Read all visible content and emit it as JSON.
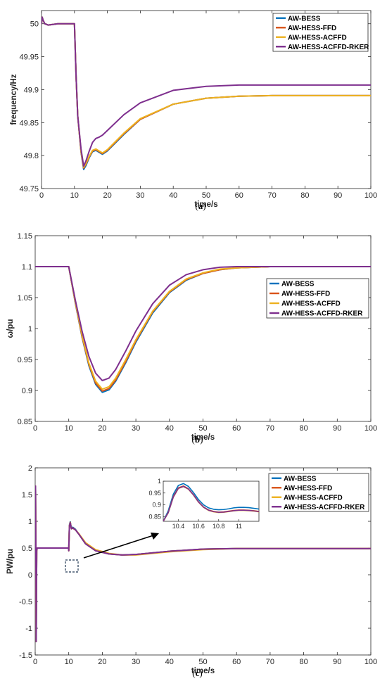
{
  "colors": {
    "AW-BESS": "#0072BD",
    "AW-HESS-FFD": "#D95319",
    "AW-HESS-ACFFD": "#EDB120",
    "AW-HESS-ACFFD-RKER": "#7E2F8E"
  },
  "chart_data": [
    {
      "id": "a",
      "type": "line",
      "caption": "a",
      "xlabel": "time/s",
      "ylabel": "frequency/Hz",
      "xlim": [
        0,
        100
      ],
      "ylim": [
        49.75,
        50.02
      ],
      "xticks": [
        0,
        10,
        20,
        30,
        40,
        50,
        60,
        70,
        80,
        90,
        100
      ],
      "yticks": [
        49.75,
        49.8,
        49.85,
        49.9,
        49.95,
        50
      ],
      "ytick_labels": [
        "49.75",
        "49.8",
        "49.85",
        "49.9",
        "49.95",
        "50"
      ],
      "legend": {
        "position": "top-right",
        "entries": [
          "AW-BESS",
          "AW-HESS-FFD",
          "AW-HESS-ACFFD",
          "AW-HESS-ACFFD-RKER"
        ]
      },
      "series": [
        {
          "name": "AW-BESS",
          "x": [
            0,
            0.2,
            0.5,
            1,
            2,
            5,
            10,
            10.5,
            11,
            12,
            12.8,
            13.5,
            14.5,
            15.5,
            16.5,
            17.5,
            18.5,
            20,
            25,
            30,
            40,
            50,
            60,
            70,
            80,
            100
          ],
          "y": [
            50.0,
            50.01,
            50.005,
            50.0,
            49.998,
            50.0,
            50.0,
            49.92,
            49.86,
            49.805,
            49.779,
            49.785,
            49.797,
            49.806,
            49.808,
            49.805,
            49.802,
            49.807,
            49.832,
            49.855,
            49.878,
            49.887,
            49.89,
            49.891,
            49.891,
            49.891
          ]
        },
        {
          "name": "AW-HESS-FFD",
          "x": [
            0,
            0.2,
            0.5,
            1,
            2,
            5,
            10,
            10.5,
            11,
            12,
            12.8,
            13.5,
            14.5,
            15.5,
            16.5,
            17.5,
            18.5,
            20,
            25,
            30,
            40,
            50,
            60,
            70,
            80,
            100
          ],
          "y": [
            50.0,
            50.01,
            50.005,
            50.0,
            49.998,
            50.0,
            50.0,
            49.92,
            49.86,
            49.806,
            49.781,
            49.787,
            49.798,
            49.807,
            49.809,
            49.806,
            49.803,
            49.808,
            49.833,
            49.855,
            49.878,
            49.887,
            49.89,
            49.891,
            49.891,
            49.891
          ]
        },
        {
          "name": "AW-HESS-ACFFD",
          "x": [
            0,
            0.2,
            0.5,
            1,
            2,
            5,
            10,
            10.5,
            11,
            12,
            12.8,
            13.5,
            14.5,
            15.5,
            16.5,
            17.5,
            18.5,
            20,
            25,
            30,
            40,
            50,
            60,
            70,
            80,
            100
          ],
          "y": [
            50.0,
            50.01,
            50.005,
            50.0,
            49.998,
            50.0,
            50.0,
            49.92,
            49.86,
            49.807,
            49.782,
            49.788,
            49.799,
            49.808,
            49.81,
            49.807,
            49.804,
            49.809,
            49.834,
            49.856,
            49.878,
            49.887,
            49.89,
            49.891,
            49.891,
            49.891
          ]
        },
        {
          "name": "AW-HESS-ACFFD-RKER",
          "x": [
            0,
            0.2,
            0.5,
            1,
            2,
            5,
            10,
            10.5,
            11,
            12,
            12.8,
            13.5,
            14.5,
            15.5,
            16.5,
            17.5,
            18.5,
            20,
            25,
            30,
            40,
            50,
            60,
            70,
            80,
            100
          ],
          "y": [
            50.0,
            50.01,
            50.005,
            50.0,
            49.998,
            50.0,
            50.0,
            49.92,
            49.86,
            49.81,
            49.784,
            49.792,
            49.807,
            49.82,
            49.826,
            49.828,
            49.831,
            49.838,
            49.862,
            49.88,
            49.899,
            49.905,
            49.907,
            49.907,
            49.907,
            49.907
          ]
        }
      ]
    },
    {
      "id": "b",
      "type": "line",
      "caption": "b",
      "xlabel": "time/s",
      "ylabel": "ω/pu",
      "xlim": [
        0,
        100
      ],
      "ylim": [
        0.85,
        1.15
      ],
      "xticks": [
        0,
        10,
        20,
        30,
        40,
        50,
        60,
        70,
        80,
        90,
        100
      ],
      "yticks": [
        0.85,
        0.9,
        0.95,
        1,
        1.05,
        1.1,
        1.15
      ],
      "ytick_labels": [
        "0.85",
        "0.9",
        "0.95",
        "1",
        "1.05",
        "1.1",
        "1.15"
      ],
      "legend": {
        "position": "right",
        "entries": [
          "AW-BESS",
          "AW-HESS-FFD",
          "AW-HESS-ACFFD",
          "AW-HESS-ACFFD-RKER"
        ]
      },
      "series": [
        {
          "name": "AW-BESS",
          "x": [
            0,
            10,
            12,
            14,
            16,
            18,
            20,
            22,
            24,
            27,
            30,
            35,
            40,
            45,
            50,
            55,
            60,
            70,
            80,
            100
          ],
          "y": [
            1.1,
            1.1,
            1.04,
            0.985,
            0.94,
            0.91,
            0.897,
            0.901,
            0.915,
            0.945,
            0.978,
            1.025,
            1.058,
            1.078,
            1.089,
            1.095,
            1.098,
            1.1,
            1.1,
            1.1
          ]
        },
        {
          "name": "AW-HESS-FFD",
          "x": [
            0,
            10,
            12,
            14,
            16,
            18,
            20,
            22,
            24,
            27,
            30,
            35,
            40,
            45,
            50,
            55,
            60,
            70,
            80,
            100
          ],
          "y": [
            1.1,
            1.1,
            1.041,
            0.986,
            0.942,
            0.912,
            0.899,
            0.903,
            0.917,
            0.947,
            0.98,
            1.027,
            1.059,
            1.079,
            1.089,
            1.095,
            1.098,
            1.1,
            1.1,
            1.1
          ]
        },
        {
          "name": "AW-HESS-ACFFD",
          "x": [
            0,
            10,
            12,
            14,
            16,
            18,
            20,
            22,
            24,
            27,
            30,
            35,
            40,
            45,
            50,
            55,
            60,
            70,
            80,
            100
          ],
          "y": [
            1.1,
            1.1,
            1.042,
            0.988,
            0.944,
            0.915,
            0.902,
            0.906,
            0.92,
            0.95,
            0.982,
            1.028,
            1.06,
            1.08,
            1.09,
            1.096,
            1.098,
            1.1,
            1.1,
            1.1
          ]
        },
        {
          "name": "AW-HESS-ACFFD-RKER",
          "x": [
            0,
            10,
            12,
            14,
            16,
            18,
            20,
            22,
            24,
            27,
            30,
            35,
            40,
            45,
            50,
            55,
            60,
            70,
            80,
            100
          ],
          "y": [
            1.1,
            1.1,
            1.045,
            0.995,
            0.955,
            0.928,
            0.916,
            0.92,
            0.934,
            0.964,
            0.996,
            1.04,
            1.07,
            1.087,
            1.095,
            1.099,
            1.1,
            1.1,
            1.1,
            1.1
          ]
        }
      ]
    },
    {
      "id": "c",
      "type": "line",
      "caption": "c",
      "xlabel": "time/s",
      "ylabel": "PW/pu",
      "xlim": [
        0,
        100
      ],
      "ylim": [
        -1.5,
        2
      ],
      "xticks": [
        0,
        10,
        20,
        30,
        40,
        50,
        60,
        70,
        80,
        90,
        100
      ],
      "yticks": [
        -1.5,
        -1,
        -0.5,
        0,
        0.5,
        1,
        1.5,
        2
      ],
      "ytick_labels": [
        "-1.5",
        "-1",
        "-0.5",
        "0",
        "0.5",
        "1",
        "1.5",
        "2"
      ],
      "legend": {
        "position": "top-right",
        "entries": [
          "AW-BESS",
          "AW-HESS-FFD",
          "AW-HESS-ACFFD",
          "AW-HESS-ACFFD-RKER"
        ]
      },
      "series": [
        {
          "name": "AW-BESS",
          "x": [
            0,
            0.1,
            0.2,
            0.3,
            0.45,
            0.6,
            1,
            5,
            9.95,
            10,
            10.2,
            10.45,
            10.8,
            11.2,
            12,
            13,
            15,
            18,
            22,
            26,
            30,
            40,
            50,
            60,
            80,
            100
          ],
          "y": [
            0.5,
            1.66,
            0.6,
            -1.25,
            0.45,
            0.5,
            0.5,
            0.5,
            0.5,
            0.45,
            0.93,
            0.99,
            0.87,
            0.89,
            0.85,
            0.76,
            0.58,
            0.45,
            0.39,
            0.37,
            0.38,
            0.44,
            0.48,
            0.49,
            0.49,
            0.49
          ]
        },
        {
          "name": "AW-HESS-FFD",
          "x": [
            0,
            0.1,
            0.2,
            0.3,
            0.45,
            0.6,
            1,
            5,
            9.95,
            10,
            10.2,
            10.45,
            10.8,
            11.2,
            12,
            13,
            15,
            18,
            22,
            26,
            30,
            40,
            50,
            60,
            80,
            100
          ],
          "y": [
            0.5,
            1.66,
            0.6,
            -1.25,
            0.45,
            0.5,
            0.5,
            0.5,
            0.5,
            0.45,
            0.92,
            0.98,
            0.86,
            0.88,
            0.84,
            0.76,
            0.58,
            0.45,
            0.39,
            0.37,
            0.38,
            0.44,
            0.48,
            0.49,
            0.49,
            0.49
          ]
        },
        {
          "name": "AW-HESS-ACFFD",
          "x": [
            0,
            0.1,
            0.2,
            0.3,
            0.45,
            0.6,
            1,
            5,
            9.95,
            10,
            10.2,
            10.45,
            10.8,
            11.2,
            12,
            13,
            15,
            18,
            22,
            26,
            30,
            40,
            50,
            60,
            80,
            100
          ],
          "y": [
            0.5,
            1.66,
            0.6,
            -1.25,
            0.45,
            0.5,
            0.5,
            0.5,
            0.5,
            0.45,
            0.91,
            0.97,
            0.86,
            0.87,
            0.84,
            0.77,
            0.6,
            0.47,
            0.4,
            0.37,
            0.37,
            0.43,
            0.47,
            0.49,
            0.49,
            0.49
          ]
        },
        {
          "name": "AW-HESS-ACFFD-RKER",
          "x": [
            0,
            0.1,
            0.2,
            0.3,
            0.45,
            0.6,
            1,
            5,
            9.95,
            10,
            10.2,
            10.45,
            10.8,
            11.2,
            12,
            13,
            15,
            18,
            22,
            26,
            30,
            40,
            50,
            60,
            80,
            100
          ],
          "y": [
            0.5,
            1.66,
            0.6,
            -1.25,
            0.45,
            0.5,
            0.5,
            0.5,
            0.5,
            0.45,
            0.91,
            0.97,
            0.86,
            0.875,
            0.84,
            0.76,
            0.58,
            0.45,
            0.39,
            0.37,
            0.38,
            0.44,
            0.48,
            0.49,
            0.49,
            0.49
          ]
        }
      ],
      "inset": {
        "xlim": [
          10.25,
          11.2
        ],
        "ylim": [
          0.83,
          1.0
        ],
        "xticks": [
          10.4,
          10.6,
          10.8,
          11
        ],
        "xtick_labels": [
          "10.4",
          "10.6",
          "10.8",
          "11"
        ],
        "yticks": [
          0.85,
          0.9,
          0.95,
          1
        ],
        "ytick_labels": [
          "0.85",
          "0.9",
          "0.95",
          "1"
        ],
        "series": [
          {
            "name": "AW-BESS",
            "x": [
              10.25,
              10.3,
              10.35,
              10.4,
              10.45,
              10.5,
              10.55,
              10.6,
              10.65,
              10.7,
              10.75,
              10.8,
              10.85,
              10.9,
              10.95,
              11,
              11.05,
              11.1,
              11.15,
              11.2
            ],
            "y": [
              0.83,
              0.875,
              0.945,
              0.982,
              0.99,
              0.978,
              0.952,
              0.922,
              0.9,
              0.887,
              0.881,
              0.879,
              0.88,
              0.883,
              0.887,
              0.889,
              0.889,
              0.888,
              0.885,
              0.882
            ]
          },
          {
            "name": "AW-HESS-FFD",
            "x": [
              10.25,
              10.3,
              10.35,
              10.4,
              10.45,
              10.5,
              10.55,
              10.6,
              10.65,
              10.7,
              10.75,
              10.8,
              10.85,
              10.9,
              10.95,
              11,
              11.05,
              11.1,
              11.15,
              11.2
            ],
            "y": [
              0.83,
              0.868,
              0.935,
              0.972,
              0.98,
              0.968,
              0.943,
              0.913,
              0.891,
              0.878,
              0.872,
              0.869,
              0.87,
              0.873,
              0.876,
              0.878,
              0.878,
              0.877,
              0.875,
              0.872
            ]
          },
          {
            "name": "AW-HESS-ACFFD",
            "x": [
              10.25,
              10.3,
              10.35,
              10.4,
              10.45,
              10.5,
              10.55,
              10.6,
              10.65,
              10.7,
              10.75,
              10.8,
              10.85,
              10.9,
              10.95,
              11,
              11.05,
              11.1,
              11.15,
              11.2
            ],
            "y": [
              0.83,
              0.866,
              0.932,
              0.969,
              0.977,
              0.966,
              0.941,
              0.911,
              0.889,
              0.876,
              0.87,
              0.867,
              0.868,
              0.871,
              0.874,
              0.876,
              0.876,
              0.875,
              0.873,
              0.87
            ]
          },
          {
            "name": "AW-HESS-ACFFD-RKER",
            "x": [
              10.25,
              10.3,
              10.35,
              10.4,
              10.45,
              10.5,
              10.55,
              10.6,
              10.65,
              10.7,
              10.75,
              10.8,
              10.85,
              10.9,
              10.95,
              11,
              11.05,
              11.1,
              11.15,
              11.2
            ],
            "y": [
              0.83,
              0.867,
              0.933,
              0.97,
              0.978,
              0.967,
              0.942,
              0.912,
              0.89,
              0.877,
              0.871,
              0.868,
              0.869,
              0.872,
              0.875,
              0.877,
              0.877,
              0.876,
              0.874,
              0.871
            ]
          }
        ]
      }
    }
  ]
}
